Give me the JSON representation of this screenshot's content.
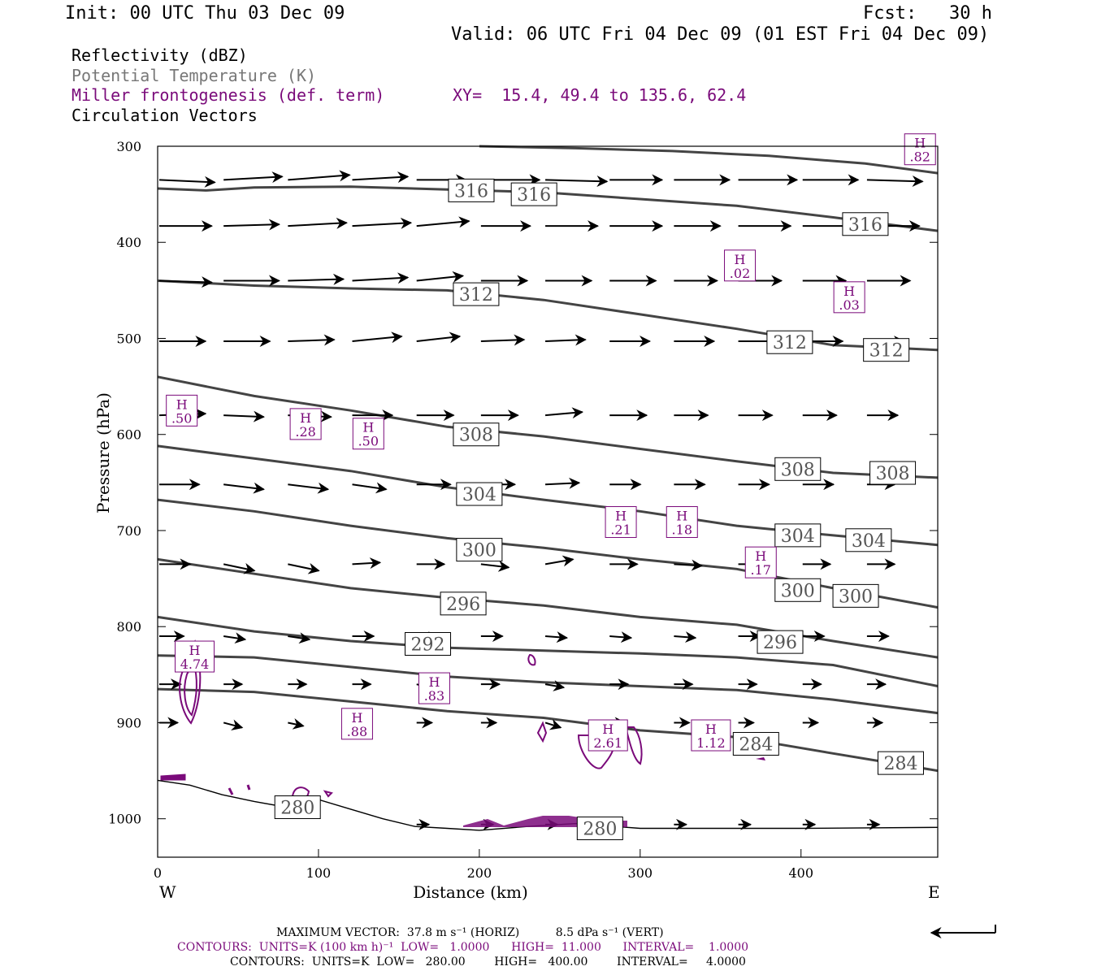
{
  "header": {
    "init": "Init: 00 UTC Thu 03 Dec 09",
    "fcst": "Fcst:   30 h",
    "valid": "Valid: 06 UTC Fri 04 Dec 09 (01 EST Fri 04 Dec 09)"
  },
  "legend": {
    "reflectivity": "Reflectivity (dBZ)",
    "theta": "Potential Temperature (K)",
    "frontogenesis": "Miller frontogenesis (def. term)",
    "xy": "XY=  15.4, 49.4 to 135.6, 62.4",
    "vectors": "Circulation Vectors"
  },
  "colors": {
    "theta": "#444444",
    "fronto": "#7a0a7a",
    "text": "#000000",
    "vectors": "#000000"
  },
  "chart_data": {
    "type": "line",
    "xlabel": "Distance (km)",
    "ylabel": "Pressure (hPa)",
    "xlim": [
      0,
      485
    ],
    "ylim": [
      300,
      1040
    ],
    "xticks": [
      0,
      100,
      200,
      300,
      400
    ],
    "yticks": [
      300,
      400,
      500,
      600,
      700,
      800,
      900,
      1000
    ],
    "left_label": "W",
    "right_label": "E",
    "theta_contours": [
      {
        "level": 280,
        "x": [
          0,
          20,
          40,
          60,
          80,
          100,
          120,
          140,
          160,
          180,
          200,
          230,
          260,
          300,
          350,
          400,
          485
        ],
        "p": [
          960,
          965,
          975,
          982,
          988,
          980,
          990,
          1000,
          1008,
          1010,
          1012,
          1008,
          1005,
          1010,
          1010,
          1010,
          1009
        ]
      },
      {
        "level": 284,
        "x": [
          0,
          60,
          120,
          180,
          240,
          300,
          360,
          420,
          485
        ],
        "p": [
          865,
          868,
          878,
          888,
          895,
          908,
          915,
          932,
          950
        ]
      },
      {
        "level": 288,
        "x": [
          0,
          60,
          120,
          180,
          240,
          300,
          360,
          420,
          485
        ],
        "p": [
          830,
          832,
          842,
          852,
          858,
          862,
          866,
          876,
          890
        ]
      },
      {
        "level": 292,
        "x": [
          0,
          60,
          120,
          180,
          240,
          300,
          360,
          420,
          485
        ],
        "p": [
          790,
          805,
          815,
          822,
          825,
          828,
          832,
          840,
          862
        ]
      },
      {
        "level": 296,
        "x": [
          0,
          60,
          120,
          180,
          240,
          300,
          360,
          420,
          485
        ],
        "p": [
          730,
          745,
          760,
          770,
          778,
          790,
          798,
          815,
          832
        ]
      },
      {
        "level": 300,
        "x": [
          0,
          60,
          120,
          180,
          240,
          300,
          360,
          420,
          485
        ],
        "p": [
          668,
          680,
          695,
          708,
          718,
          730,
          740,
          760,
          780
        ]
      },
      {
        "level": 304,
        "x": [
          0,
          60,
          120,
          180,
          240,
          300,
          360,
          420,
          485
        ],
        "p": [
          612,
          625,
          638,
          655,
          668,
          680,
          695,
          705,
          715
        ]
      },
      {
        "level": 308,
        "x": [
          0,
          60,
          120,
          180,
          240,
          300,
          360,
          420,
          485
        ],
        "p": [
          540,
          560,
          575,
          592,
          602,
          615,
          628,
          640,
          645
        ]
      },
      {
        "level": 312,
        "x": [
          0,
          60,
          120,
          180,
          240,
          300,
          360,
          420,
          485
        ],
        "p": [
          440,
          445,
          448,
          450,
          460,
          475,
          490,
          507,
          512
        ]
      },
      {
        "level": 316,
        "x": [
          0,
          30,
          60,
          120,
          180,
          240,
          300,
          360,
          420,
          485
        ],
        "p": [
          344,
          346,
          343,
          342,
          345,
          348,
          355,
          362,
          374,
          388
        ]
      },
      {
        "level": 320,
        "x": [
          200,
          260,
          320,
          380,
          440,
          485
        ],
        "p": [
          300,
          302,
          305,
          310,
          318,
          328
        ]
      }
    ],
    "theta_labels": [
      {
        "text": "316",
        "x": 195,
        "p": 346
      },
      {
        "text": "316",
        "x": 234,
        "p": 350
      },
      {
        "text": "316",
        "x": 440,
        "p": 381
      },
      {
        "text": "312",
        "x": 198,
        "p": 454
      },
      {
        "text": "312",
        "x": 393,
        "p": 504
      },
      {
        "text": "312",
        "x": 453,
        "p": 512
      },
      {
        "text": "308",
        "x": 198,
        "p": 600
      },
      {
        "text": "308",
        "x": 398,
        "p": 636
      },
      {
        "text": "308",
        "x": 457,
        "p": 640
      },
      {
        "text": "304",
        "x": 200,
        "p": 662
      },
      {
        "text": "304",
        "x": 398,
        "p": 705
      },
      {
        "text": "304",
        "x": 442,
        "p": 710
      },
      {
        "text": "300",
        "x": 200,
        "p": 720
      },
      {
        "text": "300",
        "x": 398,
        "p": 762
      },
      {
        "text": "300",
        "x": 434,
        "p": 768
      },
      {
        "text": "296",
        "x": 190,
        "p": 776
      },
      {
        "text": "296",
        "x": 387,
        "p": 816
      },
      {
        "text": "292",
        "x": 168,
        "p": 818
      },
      {
        "text": "284",
        "x": 372,
        "p": 922
      },
      {
        "text": "284",
        "x": 462,
        "p": 942
      },
      {
        "text": "280",
        "x": 87,
        "p": 988
      },
      {
        "text": "280",
        "x": 275,
        "p": 1010
      }
    ],
    "fronto_highs": [
      {
        "value": ".02",
        "x": 362,
        "p": 425
      },
      {
        "value": ".03",
        "x": 430,
        "p": 458
      },
      {
        "value": ".50",
        "x": 15,
        "p": 576
      },
      {
        "value": ".28",
        "x": 92,
        "p": 590
      },
      {
        "value": ".50",
        "x": 131,
        "p": 600
      },
      {
        "value": ".21",
        "x": 288,
        "p": 692
      },
      {
        "value": ".18",
        "x": 326,
        "p": 692
      },
      {
        "value": ".17",
        "x": 375,
        "p": 734
      },
      {
        "value": "4.74",
        "x": 23,
        "p": 832
      },
      {
        "value": ".83",
        "x": 172,
        "p": 865
      },
      {
        "value": ".88",
        "x": 124,
        "p": 902
      },
      {
        "value": "2.61",
        "x": 280,
        "p": 914
      },
      {
        "value": "1.12",
        "x": 344,
        "p": 914
      },
      {
        "value": ".82",
        "x": 474,
        "p": 304
      }
    ],
    "vector_rows": [
      {
        "p": 335,
        "x": [
          0,
          40,
          80,
          120,
          160,
          200,
          240,
          280,
          320,
          360,
          400,
          440
        ],
        "dx": [
          36,
          38,
          40,
          36,
          32,
          38,
          40,
          34,
          36,
          38,
          36,
          36
        ],
        "dp": [
          3,
          -4,
          -6,
          -4,
          0,
          0,
          2,
          0,
          0,
          0,
          0,
          2
        ]
      },
      {
        "p": 383,
        "x": [
          0,
          40,
          80,
          120,
          160,
          200,
          240,
          280,
          320,
          360,
          400,
          440
        ],
        "dx": [
          34,
          36,
          38,
          38,
          34,
          32,
          34,
          34,
          30,
          34,
          34,
          34
        ],
        "dp": [
          0,
          -2,
          -4,
          -4,
          -6,
          0,
          0,
          0,
          0,
          0,
          0,
          0
        ]
      },
      {
        "p": 440,
        "x": [
          0,
          40,
          80,
          120,
          160,
          200,
          240,
          280,
          320,
          360,
          400,
          440
        ],
        "dx": [
          34,
          36,
          36,
          36,
          30,
          30,
          30,
          30,
          28,
          28,
          28,
          28
        ],
        "dp": [
          2,
          0,
          -2,
          -4,
          -6,
          0,
          0,
          0,
          0,
          0,
          0,
          0
        ]
      },
      {
        "p": 503,
        "x": [
          0,
          40,
          80,
          120,
          160,
          200,
          240,
          280,
          320,
          360,
          400,
          440
        ],
        "dx": [
          30,
          30,
          30,
          32,
          28,
          28,
          26,
          26,
          26,
          26,
          26,
          24
        ],
        "dp": [
          0,
          0,
          -2,
          -6,
          -6,
          -2,
          -2,
          0,
          0,
          0,
          0,
          0
        ]
      },
      {
        "p": 580,
        "x": [
          0,
          40,
          80,
          120,
          160,
          200,
          240,
          280,
          320,
          360,
          400,
          440
        ],
        "dx": [
          30,
          26,
          28,
          26,
          24,
          24,
          24,
          24,
          22,
          22,
          22,
          20
        ],
        "dp": [
          -2,
          2,
          2,
          0,
          0,
          0,
          -4,
          0,
          0,
          0,
          0,
          0
        ]
      },
      {
        "p": 652,
        "x": [
          0,
          40,
          80,
          120,
          160,
          200,
          240,
          280,
          320,
          360,
          400,
          440
        ],
        "dx": [
          26,
          26,
          26,
          22,
          22,
          22,
          22,
          20,
          20,
          20,
          20,
          18
        ],
        "dp": [
          0,
          6,
          6,
          6,
          0,
          0,
          -2,
          0,
          0,
          0,
          0,
          0
        ]
      },
      {
        "p": 735,
        "x": [
          0,
          40,
          80,
          120,
          160,
          200,
          240,
          280,
          320,
          360,
          400,
          440
        ],
        "dx": [
          20,
          20,
          20,
          18,
          18,
          18,
          18,
          18,
          18,
          18,
          18,
          18
        ],
        "dp": [
          0,
          8,
          8,
          -2,
          0,
          4,
          -6,
          0,
          2,
          0,
          0,
          0
        ]
      },
      {
        "p": 810,
        "x": [
          0,
          40,
          80,
          120,
          160,
          200,
          240,
          280,
          320,
          360,
          400,
          440
        ],
        "dx": [
          16,
          14,
          14,
          14,
          14,
          14,
          14,
          14,
          14,
          14,
          14,
          14
        ],
        "dp": [
          0,
          4,
          4,
          0,
          2,
          0,
          2,
          2,
          2,
          0,
          0,
          0
        ]
      },
      {
        "p": 860,
        "x": [
          0,
          40,
          80,
          120,
          160,
          200,
          240,
          280,
          320,
          360,
          400,
          440
        ],
        "dx": [
          14,
          12,
          12,
          12,
          12,
          12,
          12,
          12,
          12,
          12,
          12,
          12
        ],
        "dp": [
          0,
          0,
          0,
          0,
          6,
          0,
          4,
          0,
          0,
          0,
          0,
          0
        ]
      },
      {
        "p": 900,
        "x": [
          0,
          40,
          80,
          120,
          160,
          200,
          240,
          280,
          320,
          360,
          400,
          440
        ],
        "dx": [
          12,
          12,
          10,
          10,
          10,
          10,
          10,
          10,
          10,
          10,
          10,
          10
        ],
        "dp": [
          0,
          6,
          4,
          6,
          0,
          0,
          6,
          0,
          0,
          0,
          0,
          0
        ]
      },
      {
        "p": 1006,
        "x": [
          160,
          200,
          240,
          280,
          320,
          360,
          400,
          440
        ],
        "dx": [
          8,
          8,
          8,
          8,
          8,
          8,
          8,
          8
        ],
        "dp": [
          0,
          0,
          0,
          0,
          0,
          0,
          0,
          0
        ]
      }
    ]
  },
  "footer": {
    "max_vector": "MAXIMUM VECTOR:  37.8 m s⁻¹ (HORIZ)          8.5 dPa s⁻¹ (VERT)",
    "contours_fronto": "CONTOURS:  UNITS=K (100 km h)⁻¹  LOW=   1.0000      HIGH=  11.000      INTERVAL=    1.0000",
    "contours_theta": "CONTOURS:  UNITS=K  LOW=   280.00        HIGH=   400.00        INTERVAL=     4.0000"
  }
}
